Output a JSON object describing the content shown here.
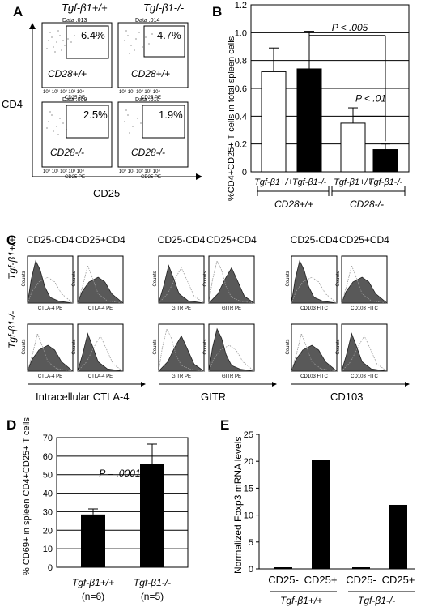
{
  "panels": {
    "A": {
      "letter": "A",
      "col_labels": [
        "Tgf-β1+/+",
        "Tgf-β1-/-"
      ],
      "y_axis": "CD4",
      "x_axis": "CD25",
      "plots": [
        {
          "data_label": "Data .013",
          "pct": "6.4%",
          "geno": "CD28+/+",
          "xlabel": "CD25 PE"
        },
        {
          "data_label": "Data .014",
          "pct": "4.7%",
          "geno": "CD28+/+",
          "xlabel": "CD25 PE"
        },
        {
          "data_label": "Data .009",
          "pct": "2.5%",
          "geno": "CD28-/-",
          "xlabel": "CD25 PE"
        },
        {
          "data_label": "Data .010",
          "pct": "1.9%",
          "geno": "CD28-/-",
          "xlabel": "CD25 PE"
        }
      ]
    },
    "C": {
      "letter": "C",
      "row_labels": [
        "Tgf-β1+/+",
        "Tgf-β1-/-"
      ],
      "col_headers": [
        "CD25-CD4",
        "CD25+CD4",
        "CD25-CD4",
        "CD25+CD4",
        "CD25-CD4",
        "CD25+CD4"
      ],
      "groups": [
        "Intracellular CTLA-4",
        "GITR",
        "CD103"
      ],
      "xlabels": [
        "CTLA-4 PE",
        "CTLA-4 PE",
        "GITR PE",
        "GITR PE",
        "CD103 FITC",
        "CD103 FITC"
      ],
      "counts": "Counts"
    }
  },
  "chart_data": [
    {
      "panel": "B",
      "type": "bar",
      "ylabel": "%CD4+CD25+ T cells in total spleen cells",
      "ylim": [
        0,
        1.2
      ],
      "yticks": [
        0,
        0.2,
        0.4,
        0.6,
        0.8,
        1.0,
        1.2
      ],
      "categories": [
        "Tgf-β1+/+",
        "Tgf-β1-/-",
        "Tgf-β1+/+",
        "Tgf-β1-/-"
      ],
      "values": [
        0.72,
        0.74,
        0.35,
        0.16
      ],
      "errors": [
        0.17,
        0.27,
        0.11,
        0.04
      ],
      "fills": [
        "#ffffff",
        "#000000",
        "#ffffff",
        "#000000"
      ],
      "groups": [
        "CD28+/+",
        "CD28-/-"
      ],
      "annotations": [
        "P < .005",
        "P < .01"
      ],
      "grid": true
    },
    {
      "panel": "D",
      "type": "bar",
      "ylabel": "% CD69+ in spleen CD4+CD25+ T cells",
      "ylim": [
        0,
        70
      ],
      "yticks": [
        0,
        10,
        20,
        30,
        40,
        50,
        60,
        70
      ],
      "categories": [
        "Tgf-β1+/+",
        "Tgf-β1-/-"
      ],
      "sub_labels": [
        "(n=6)",
        "(n=5)"
      ],
      "values": [
        28.5,
        56
      ],
      "errors": [
        3,
        10.5
      ],
      "annotation": "P = .0001",
      "grid": true
    },
    {
      "panel": "E",
      "type": "bar",
      "ylabel": "Normalized Foxp3 mRNA levels",
      "ylim": [
        0,
        25
      ],
      "yticks": [
        0,
        5,
        10,
        15,
        20,
        25
      ],
      "categories": [
        "CD25-",
        "CD25+",
        "CD25-",
        "CD25+"
      ],
      "groups": [
        "Tgf-β1+/+",
        "Tgf-β1-/-"
      ],
      "values": [
        0.3,
        20.2,
        0.3,
        11.9
      ],
      "grid": false
    }
  ]
}
